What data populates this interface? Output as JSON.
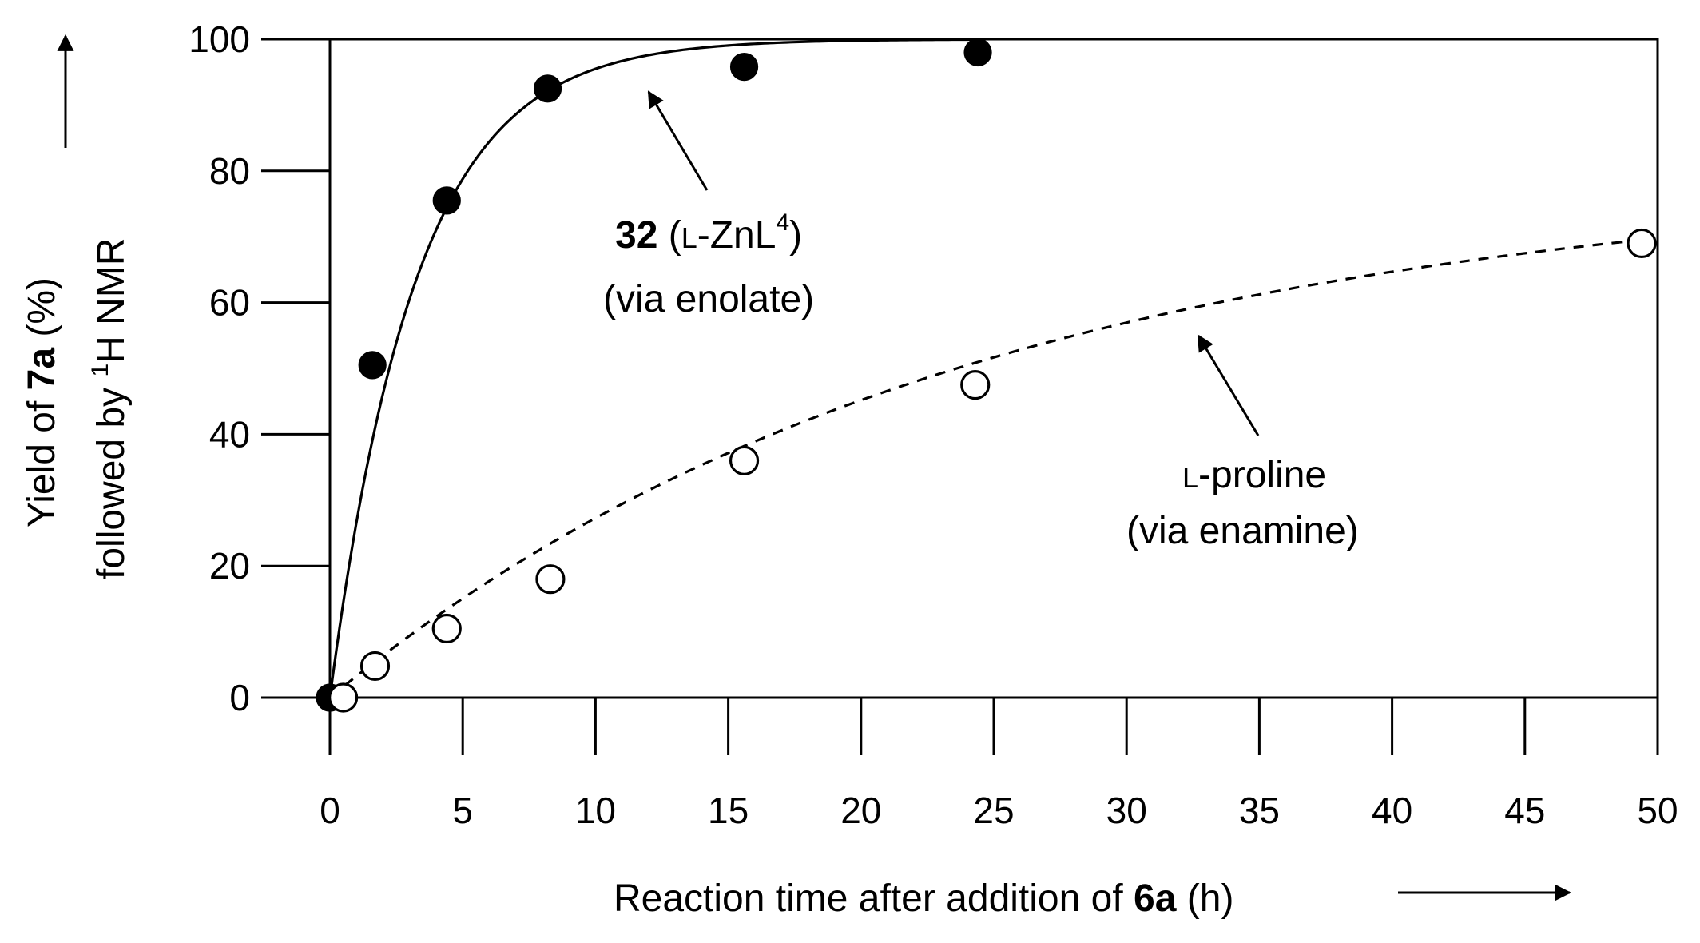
{
  "chart_data": {
    "type": "scatter",
    "xlabel": {
      "pre": "Reaction time after addition of ",
      "bold": "6a",
      "post": " (h)"
    },
    "ylabel": {
      "line1_pre": "Yield of ",
      "line1_bold": "7a",
      "line1_post": " (%)",
      "line2_pre": "followed by ",
      "line2_sup": "1",
      "line2_post": "H NMR"
    },
    "xlim": [
      0,
      50
    ],
    "ylim": [
      0,
      100
    ],
    "xticks": [
      0,
      5,
      10,
      15,
      20,
      25,
      30,
      35,
      40,
      45,
      50
    ],
    "yticks": [
      0,
      20,
      40,
      60,
      80,
      100
    ],
    "series": [
      {
        "name": "32 (L-ZnL4) (via enolate)",
        "marker": "filled-circle",
        "line": "solid",
        "x": [
          0,
          1.6,
          4.4,
          8.2,
          15.6,
          24.4
        ],
        "y": [
          0,
          50.5,
          75.5,
          92.5,
          95.8,
          98
        ],
        "fit": {
          "model": "exponential",
          "ymax": 100,
          "k": 0.31,
          "x_end": 24.4
        }
      },
      {
        "name": "L-proline (via enamine)",
        "marker": "open-circle",
        "line": "dashed",
        "x": [
          0.5,
          1.7,
          4.4,
          8.3,
          15.6,
          24.3,
          49.4
        ],
        "y": [
          0,
          4.8,
          10.5,
          18,
          36,
          47.5,
          69
        ],
        "fit": {
          "model": "exponential",
          "ymax": 79.5,
          "k": 0.042,
          "x_end": 49.4
        }
      }
    ],
    "annotations": {
      "enolate": {
        "bold": "32",
        "open": " (",
        "sc": "L",
        "mid": "-ZnL",
        "sup": "4",
        "close": ")",
        "line2": "(via enolate)"
      },
      "enamine": {
        "sc": "L",
        "rest": "-proline",
        "line2": "(via enamine)"
      }
    }
  }
}
